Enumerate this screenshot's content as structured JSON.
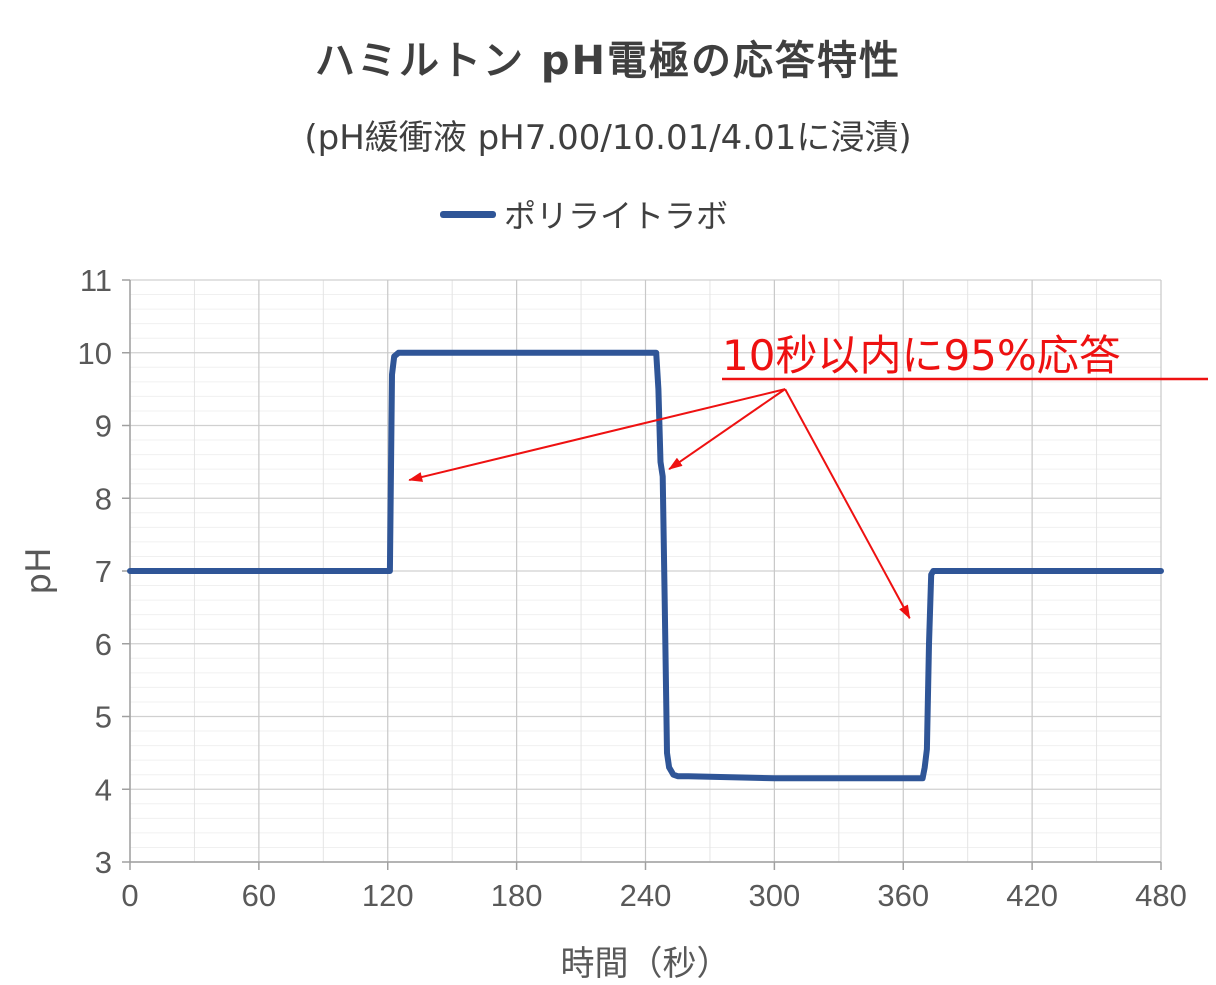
{
  "chart_data": {
    "type": "line",
    "title": "ハミルトン pH電極の応答特性",
    "subtitle": "(pH緩衝液 pH7.00/10.01/4.01に浸漬)",
    "xlabel": "時間（秒）",
    "ylabel": "pH",
    "xlim": [
      0,
      480
    ],
    "ylim": [
      3,
      11
    ],
    "xticks": [
      0,
      60,
      120,
      180,
      240,
      300,
      360,
      420,
      480
    ],
    "yticks": [
      3,
      4,
      5,
      6,
      7,
      8,
      9,
      10,
      11
    ],
    "grid": true,
    "legend_position": "top",
    "series": [
      {
        "name": "ポリライトラボ",
        "color": "#2f5597",
        "x": [
          0,
          60,
          120,
          121,
          122,
          123,
          125,
          130,
          180,
          240,
          245,
          246,
          247,
          248,
          249,
          250,
          251,
          252,
          253,
          255,
          260,
          300,
          360,
          369,
          370,
          371,
          372,
          373,
          374,
          376,
          380,
          420,
          480
        ],
        "y": [
          7.0,
          7.0,
          7.0,
          7.0,
          9.7,
          9.95,
          10.0,
          10.0,
          10.0,
          10.0,
          10.0,
          9.5,
          8.5,
          8.3,
          6.5,
          4.5,
          4.3,
          4.25,
          4.2,
          4.18,
          4.18,
          4.15,
          4.15,
          4.15,
          4.3,
          4.55,
          6.0,
          6.95,
          7.0,
          7.0,
          7.0,
          7.0,
          7.0
        ]
      }
    ],
    "annotation": {
      "text": "10秒以内に95%応答",
      "color": "#ee1111",
      "arrow_from": {
        "x": 305,
        "y": 9.5
      },
      "arrow_targets": [
        {
          "x": 130,
          "y": 8.25
        },
        {
          "x": 251,
          "y": 8.4
        },
        {
          "x": 363,
          "y": 6.35
        }
      ]
    }
  }
}
